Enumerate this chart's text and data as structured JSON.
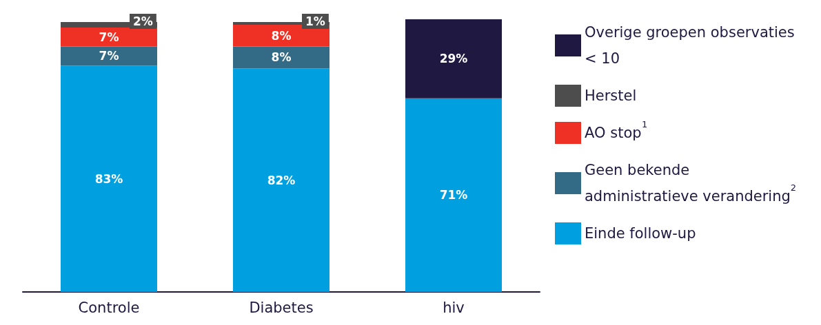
{
  "chart_data": {
    "type": "bar",
    "stacked": true,
    "legend": "right",
    "categories": [
      "Controle",
      "Diabetes",
      "hiv"
    ],
    "series": [
      {
        "name": "Einde follow-up",
        "color": "#009fe0",
        "values": [
          83,
          82,
          71
        ],
        "value_labels": [
          "83%",
          "82%",
          "71%"
        ]
      },
      {
        "name": "Geen bekende administratieve verandering$^{2}$",
        "color": "#336b87",
        "values": [
          7,
          8,
          null
        ],
        "value_labels": [
          "7%",
          "8%",
          null
        ]
      },
      {
        "name": "AO stop$^{1}$",
        "color": "#ee3124",
        "values": [
          7,
          8,
          null
        ],
        "value_labels": [
          "7%",
          "8%",
          null
        ]
      },
      {
        "name": "Herstel",
        "color": "#4d4d4d",
        "values": [
          2,
          1,
          null
        ],
        "value_labels": [
          "2%",
          "1%",
          null
        ]
      },
      {
        "name": "Overige groepen observaties < 10",
        "color": "#1f1840",
        "values": [
          null,
          null,
          29
        ],
        "value_labels": [
          null,
          null,
          "29%"
        ]
      }
    ]
  }
}
